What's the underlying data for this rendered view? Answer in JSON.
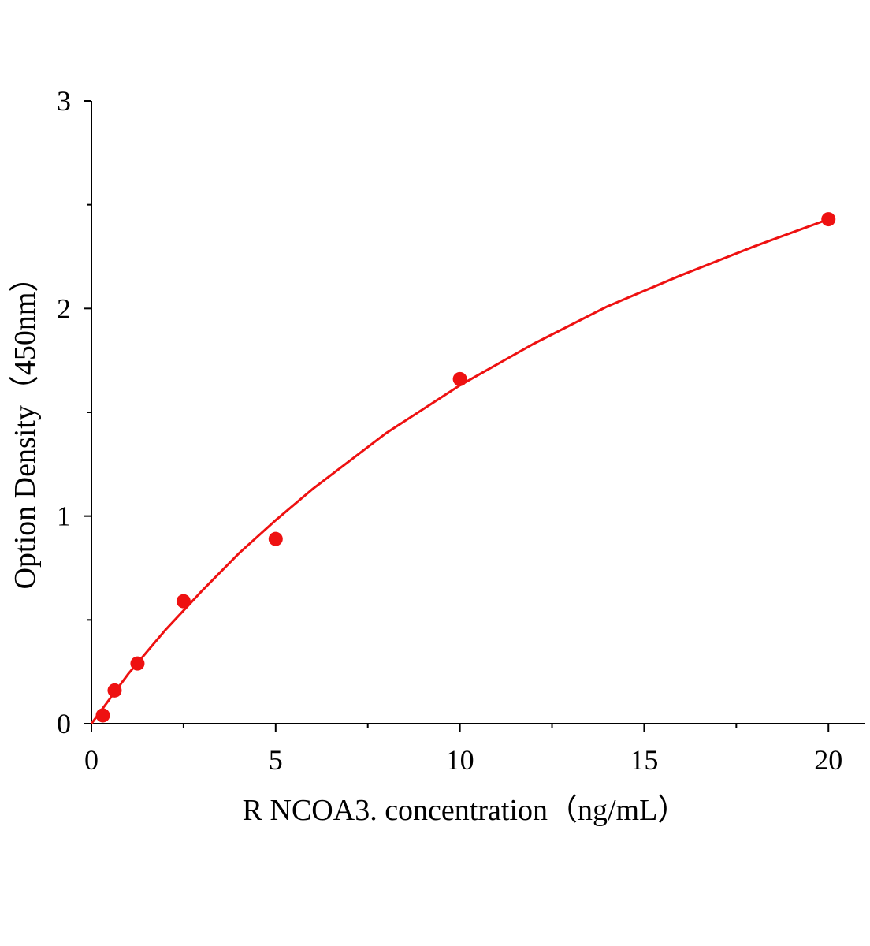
{
  "chart_data": {
    "type": "scatter",
    "x_label": "R NCOA3. concentration（ng/mL）",
    "y_label": "Option Density（450nm）",
    "xlim": [
      0,
      21
    ],
    "ylim": [
      0,
      3
    ],
    "xticks": [
      0,
      5,
      10,
      15,
      20
    ],
    "yticks": [
      0,
      1,
      2,
      3
    ],
    "xminorticks": [
      2.5,
      7.5,
      12.5,
      17.5
    ],
    "yminorticks": [
      0.5,
      1.5,
      2.5
    ],
    "color": "#ee1111",
    "series": [
      {
        "kind": "points",
        "x": [
          0.31,
          0.63,
          1.25,
          2.5,
          5,
          10,
          20
        ],
        "values": [
          0.04,
          0.16,
          0.29,
          0.59,
          0.89,
          1.66,
          2.43
        ]
      },
      {
        "kind": "fit",
        "x": [
          0,
          0.5,
          1,
          2,
          3,
          4,
          5,
          6,
          8,
          10,
          12,
          14,
          16,
          18,
          20
        ],
        "values": [
          0,
          0.12,
          0.24,
          0.45,
          0.64,
          0.82,
          0.98,
          1.13,
          1.4,
          1.63,
          1.83,
          2.01,
          2.16,
          2.3,
          2.43
        ]
      }
    ]
  }
}
